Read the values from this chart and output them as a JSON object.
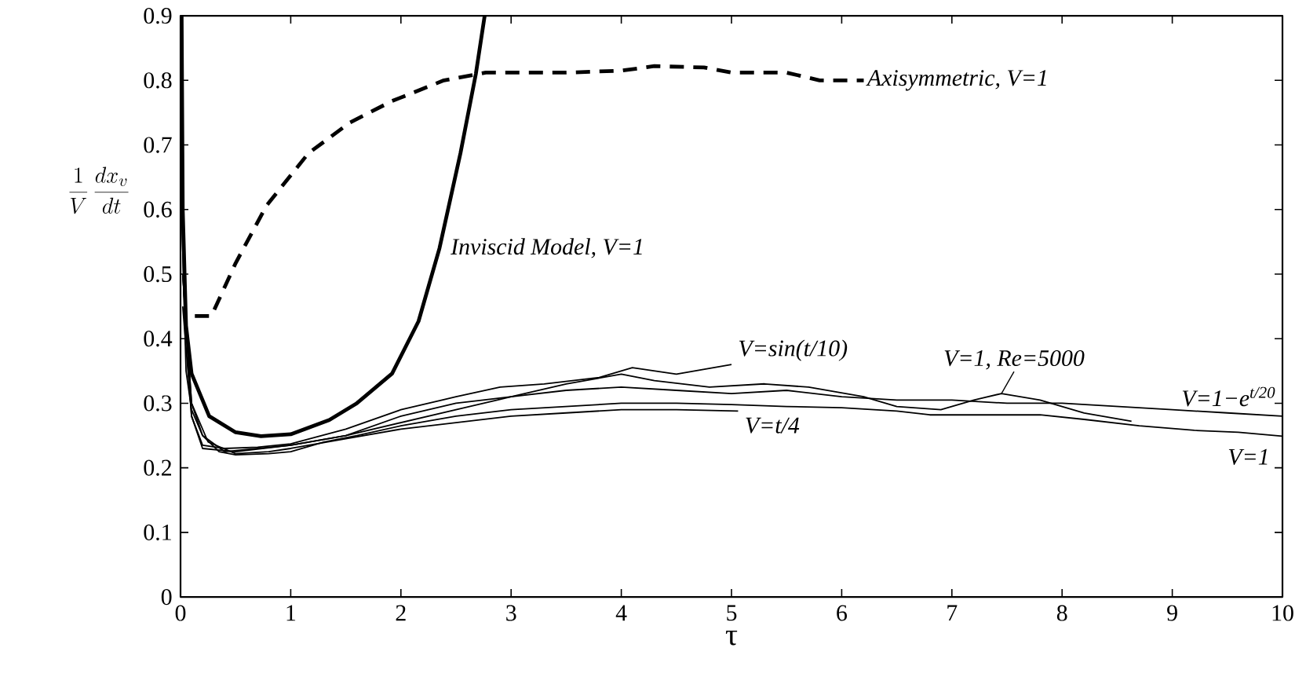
{
  "chart_data": {
    "type": "line",
    "xlabel": "τ",
    "ylabel": "\\frac{1}{V}\\,\\frac{dx_v}{dt}",
    "xlim": [
      0,
      10
    ],
    "ylim": [
      0,
      0.9
    ],
    "xticks": [
      0,
      1,
      2,
      3,
      4,
      5,
      6,
      7,
      8,
      9,
      10
    ],
    "yticks": [
      0,
      0.1,
      0.2,
      0.3,
      0.4,
      0.5,
      0.6,
      0.7,
      0.8,
      0.9
    ],
    "grid": false,
    "marker": "none",
    "series": [
      {
        "color": "#000000",
        "line_style": "solid",
        "x": [
          0.01,
          0.05,
          0.1,
          0.2,
          0.35,
          0.5,
          0.8,
          1.0,
          1.3,
          1.6,
          2.0,
          2.5,
          3.0,
          3.5,
          4.0,
          4.5,
          5.0,
          5.5,
          6.0,
          6.5,
          6.8,
          7.8,
          8.2,
          8.7,
          9.2,
          9.6,
          10
        ],
        "values": [
          0.6,
          0.35,
          0.29,
          0.25,
          0.225,
          0.22,
          0.222,
          0.225,
          0.24,
          0.25,
          0.265,
          0.28,
          0.29,
          0.295,
          0.3,
          0.3,
          0.298,
          0.295,
          0.293,
          0.288,
          0.282,
          0.282,
          0.275,
          0.265,
          0.258,
          0.255,
          0.249
        ]
      },
      {
        "color": "#000000",
        "line_style": "solid",
        "x": [
          0.02,
          0.1,
          0.25,
          0.5,
          0.8,
          1.0,
          1.5,
          2.0,
          2.5,
          3.0,
          3.5,
          4.0,
          4.5,
          5.06
        ],
        "values": [
          0.5,
          0.3,
          0.24,
          0.222,
          0.225,
          0.23,
          0.245,
          0.26,
          0.27,
          0.28,
          0.285,
          0.29,
          0.29,
          0.288
        ]
      },
      {
        "color": "#000000",
        "line_style": "solid",
        "x": [
          0.02,
          0.1,
          0.2,
          0.4,
          0.7,
          1.0,
          1.5,
          2.0,
          2.5,
          2.9,
          3.3,
          3.8,
          4.1,
          4.5,
          5.0
        ],
        "values": [
          0.5,
          0.28,
          0.235,
          0.23,
          0.232,
          0.237,
          0.26,
          0.29,
          0.31,
          0.325,
          0.33,
          0.34,
          0.355,
          0.345,
          0.36
        ]
      },
      {
        "color": "#000000",
        "line_style": "solid",
        "x": [
          0.02,
          0.1,
          0.2,
          0.5,
          1.0,
          1.5,
          2.0,
          2.5,
          3.0,
          3.5,
          4.0,
          4.5,
          5.0,
          5.5,
          6.0,
          6.5,
          7.0,
          7.5,
          8.0,
          8.5,
          9.0,
          9.5,
          10
        ],
        "values": [
          0.45,
          0.28,
          0.23,
          0.225,
          0.235,
          0.25,
          0.28,
          0.3,
          0.31,
          0.32,
          0.325,
          0.32,
          0.315,
          0.32,
          0.31,
          0.305,
          0.305,
          0.3,
          0.3,
          0.295,
          0.29,
          0.285,
          0.28
        ]
      },
      {
        "color": "#000000",
        "line_style": "solid",
        "x": [
          0.02,
          0.1,
          0.2,
          0.4,
          0.7,
          1.0,
          1.5,
          2.0,
          2.5,
          3.0,
          3.5,
          4.0,
          4.3,
          4.8,
          5.3,
          5.7,
          6.2,
          6.5,
          6.9,
          7.2,
          7.45,
          7.8,
          8.2,
          8.63
        ],
        "values": [
          0.5,
          0.3,
          0.25,
          0.225,
          0.23,
          0.235,
          0.25,
          0.27,
          0.29,
          0.31,
          0.33,
          0.345,
          0.335,
          0.325,
          0.33,
          0.325,
          0.31,
          0.295,
          0.29,
          0.305,
          0.315,
          0.305,
          0.285,
          0.272
        ]
      },
      {
        "color": "#000000",
        "line_style": "solid",
        "x": [
          0.01,
          0.02,
          0.05,
          0.1,
          0.26,
          0.5,
          0.73,
          1.0,
          1.35,
          1.6,
          1.92,
          2.16,
          2.35,
          2.54,
          2.68,
          2.76
        ],
        "values": [
          0.9,
          0.6,
          0.42,
          0.346,
          0.28,
          0.255,
          0.249,
          0.252,
          0.274,
          0.3,
          0.346,
          0.427,
          0.54,
          0.687,
          0.81,
          0.9
        ]
      },
      {
        "color": "#000000",
        "line_style": "dashed",
        "x": [
          0.13,
          0.28,
          0.5,
          0.78,
          1.16,
          1.54,
          1.92,
          2.39,
          2.77,
          3.5,
          4.0,
          4.3,
          4.75,
          5.0,
          5.5,
          5.8,
          6.2
        ],
        "values": [
          0.435,
          0.435,
          0.517,
          0.606,
          0.687,
          0.735,
          0.768,
          0.8,
          0.812,
          0.812,
          0.815,
          0.822,
          0.82,
          0.812,
          0.812,
          0.8,
          0.8
        ]
      }
    ],
    "annotations": [
      {
        "text": "Axisymmetric, V=1",
        "x": 6.2,
        "y": 0.8
      },
      {
        "text": "Inviscid Model, V=1",
        "x": 2.42,
        "y": 0.55
      },
      {
        "text": "V=sin(t/10)",
        "x": 5.0,
        "y": 0.36
      },
      {
        "text": "V=t/4",
        "x": 5.06,
        "y": 0.288
      },
      {
        "text": "V=1, Re=5000",
        "x": 7.45,
        "y": 0.315
      },
      {
        "text": "V=1−e$^{t/20}$",
        "x": 10,
        "y": 0.28
      },
      {
        "text": "V=1",
        "x": 10,
        "y": 0.249
      }
    ]
  }
}
